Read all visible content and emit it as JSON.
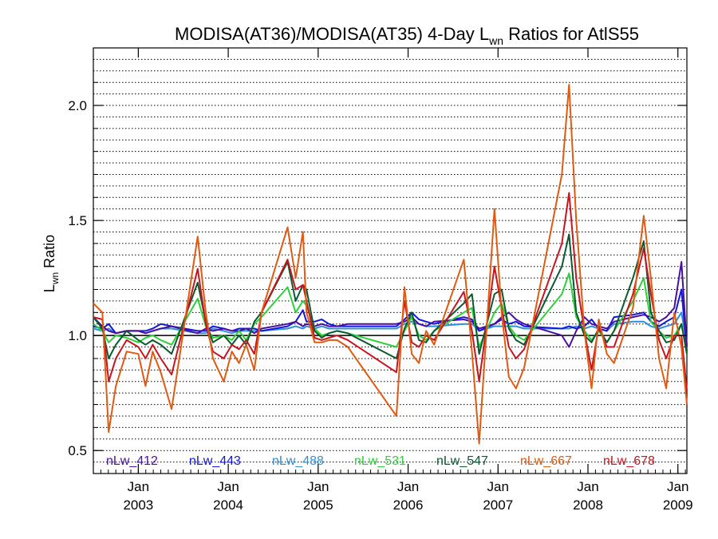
{
  "chart_data": {
    "type": "line",
    "title": {
      "main": "MODISA(AT36)/MODISA(AT35) 4-Day L",
      "sub": "wn",
      "tail": " Ratios for AtlS55"
    },
    "ylabel": {
      "main": "L",
      "sub": "wn",
      "tail": " Ratio"
    },
    "xlabel": "",
    "xlim": [
      2002.5,
      2009.1
    ],
    "ylim": [
      0.4,
      2.25
    ],
    "yticks": [
      {
        "value": 0.5,
        "label": "0.5"
      },
      {
        "value": 1.0,
        "label": "1.0"
      },
      {
        "value": 1.5,
        "label": "1.5"
      },
      {
        "value": 2.0,
        "label": "2.0"
      }
    ],
    "xticks": [
      {
        "value": 2003.0,
        "month": "Jan",
        "year": "2003"
      },
      {
        "value": 2004.0,
        "month": "Jan",
        "year": "2004"
      },
      {
        "value": 2005.0,
        "month": "Jan",
        "year": "2005"
      },
      {
        "value": 2006.0,
        "month": "Jan",
        "year": "2006"
      },
      {
        "value": 2007.0,
        "month": "Jan",
        "year": "2007"
      },
      {
        "value": 2008.0,
        "month": "Jan",
        "year": "2008"
      },
      {
        "value": 2009.0,
        "month": "Jan",
        "year": "2009"
      }
    ],
    "grid": "horizontal-dotted",
    "reference_line": 1.0,
    "legend_position": "bottom-inside",
    "x": [
      2002.5,
      2002.6,
      2002.67,
      2002.75,
      2002.87,
      2003.0,
      2003.08,
      2003.16,
      2003.25,
      2003.37,
      2003.66,
      2003.75,
      2003.83,
      2003.95,
      2004.04,
      2004.12,
      2004.2,
      2004.29,
      2004.37,
      2004.66,
      2004.75,
      2004.83,
      2004.87,
      2004.96,
      2005.04,
      2005.12,
      2005.21,
      2005.33,
      2005.87,
      2005.96,
      2006.04,
      2006.12,
      2006.2,
      2006.29,
      2006.62,
      2006.71,
      2006.79,
      2006.96,
      2007.04,
      2007.12,
      2007.2,
      2007.29,
      2007.71,
      2007.79,
      2007.87,
      2007.96,
      2008.04,
      2008.12,
      2008.21,
      2008.29,
      2008.5,
      2008.62,
      2008.7,
      2008.79,
      2008.87,
      2008.96,
      2009.04,
      2009.1
    ],
    "series": [
      {
        "name": "nLw_412",
        "color": "#4a0fa0",
        "values": [
          1.08,
          1.04,
          1.02,
          1.01,
          1.02,
          1.02,
          1.01,
          1.02,
          1.03,
          1.04,
          1.01,
          1.03,
          1.02,
          1.03,
          1.02,
          1.02,
          1.03,
          1.01,
          1.03,
          1.05,
          1.06,
          1.04,
          1.05,
          1.04,
          1.05,
          1.04,
          1.04,
          1.05,
          1.05,
          1.06,
          1.08,
          1.05,
          1.04,
          1.06,
          1.07,
          1.06,
          1.03,
          1.05,
          1.08,
          1.1,
          1.07,
          1.05,
          1.0,
          0.95,
          1.02,
          1.08,
          1.05,
          1.04,
          1.03,
          1.06,
          1.08,
          1.09,
          1.08,
          1.06,
          1.08,
          1.12,
          1.32,
          0.95
        ]
      },
      {
        "name": "nLw_443",
        "color": "#1219d8",
        "values": [
          1.04,
          1.03,
          1.05,
          1.01,
          1.02,
          1.02,
          1.02,
          1.03,
          1.05,
          1.04,
          1.02,
          1.02,
          1.04,
          1.03,
          1.02,
          1.03,
          1.03,
          1.03,
          1.02,
          1.04,
          1.06,
          1.11,
          1.06,
          1.06,
          1.07,
          1.05,
          1.04,
          1.04,
          1.04,
          1.07,
          1.1,
          1.07,
          1.06,
          1.05,
          1.08,
          1.07,
          1.02,
          1.05,
          1.07,
          1.05,
          1.06,
          1.04,
          1.03,
          1.04,
          1.03,
          1.04,
          1.07,
          1.03,
          1.02,
          1.08,
          1.09,
          1.1,
          1.06,
          1.04,
          1.06,
          1.08,
          1.2,
          0.93
        ]
      },
      {
        "name": "nLw_488",
        "color": "#2f8fd8",
        "values": [
          1.03,
          1.02,
          1.03,
          1.01,
          1.02,
          1.02,
          1.01,
          1.02,
          1.03,
          1.03,
          1.01,
          1.01,
          1.03,
          1.02,
          1.01,
          1.02,
          1.02,
          1.02,
          1.02,
          1.03,
          1.04,
          1.03,
          1.04,
          1.03,
          1.04,
          1.03,
          1.03,
          1.03,
          1.03,
          1.05,
          1.06,
          1.05,
          1.04,
          1.04,
          1.05,
          1.05,
          1.02,
          1.04,
          1.04,
          1.04,
          1.04,
          1.03,
          1.03,
          1.03,
          1.04,
          1.03,
          1.04,
          1.03,
          1.02,
          1.05,
          1.06,
          1.06,
          1.04,
          1.03,
          1.04,
          1.05,
          1.1,
          0.96
        ]
      },
      {
        "name": "nLw_531",
        "color": "#2ed03a",
        "values": [
          1.05,
          1.02,
          0.97,
          1.0,
          0.99,
          0.97,
          0.99,
          1.0,
          0.98,
          0.96,
          1.16,
          1.04,
          0.99,
          1.0,
          0.98,
          1.02,
          0.98,
          1.05,
          1.08,
          1.21,
          1.1,
          1.15,
          1.13,
          1.03,
          1.0,
          1.01,
          1.02,
          1.01,
          0.95,
          1.02,
          1.08,
          1.0,
          0.98,
          1.02,
          1.1,
          1.12,
          0.95,
          1.1,
          1.14,
          1.04,
          1.0,
          0.98,
          1.18,
          1.27,
          1.08,
          1.02,
          0.98,
          1.02,
          0.97,
          1.02,
          1.15,
          1.25,
          1.06,
          1.02,
          0.99,
          1.0,
          1.05,
          0.92
        ]
      },
      {
        "name": "nLw_547",
        "color": "#0a5a30",
        "values": [
          1.08,
          1.03,
          0.9,
          0.96,
          1.02,
          0.98,
          0.96,
          0.98,
          0.96,
          0.92,
          1.23,
          1.06,
          0.97,
          1.0,
          0.96,
          1.0,
          0.96,
          1.06,
          1.1,
          1.32,
          1.15,
          1.22,
          1.2,
          1.02,
          0.99,
          1.01,
          1.02,
          1.01,
          0.9,
          1.03,
          1.1,
          0.98,
          0.97,
          1.02,
          1.14,
          1.18,
          0.92,
          1.18,
          1.2,
          1.03,
          0.98,
          0.96,
          1.3,
          1.44,
          1.1,
          1.0,
          0.97,
          1.03,
          0.97,
          1.02,
          1.25,
          1.41,
          1.1,
          1.02,
          0.97,
          0.98,
          1.05,
          0.92
        ]
      },
      {
        "name": "nLw_667",
        "color": "#e05a10",
        "values": [
          1.14,
          1.1,
          0.58,
          0.78,
          0.93,
          0.92,
          0.78,
          0.93,
          0.84,
          0.68,
          1.43,
          1.1,
          0.9,
          0.8,
          0.93,
          0.88,
          0.96,
          0.85,
          1.1,
          1.47,
          1.25,
          1.45,
          1.1,
          0.97,
          0.97,
          0.98,
          0.98,
          0.95,
          0.65,
          1.21,
          0.92,
          0.88,
          1.02,
          0.96,
          1.33,
          0.93,
          0.53,
          1.55,
          1.1,
          0.82,
          0.77,
          0.86,
          1.7,
          2.09,
          1.5,
          1.02,
          0.77,
          1.07,
          0.92,
          0.88,
          1.12,
          1.52,
          1.25,
          0.9,
          0.77,
          1.1,
          0.95,
          0.7
        ]
      },
      {
        "name": "nLw_678",
        "color": "#c8141e",
        "values": [
          1.08,
          1.07,
          0.8,
          0.9,
          0.98,
          0.95,
          0.9,
          0.96,
          0.9,
          0.83,
          1.29,
          1.05,
          0.93,
          0.9,
          0.96,
          0.94,
          0.98,
          0.92,
          1.1,
          1.33,
          1.2,
          1.22,
          1.15,
          0.99,
          0.98,
          0.99,
          1.0,
          0.98,
          0.84,
          1.15,
          0.97,
          0.95,
          1.0,
          0.98,
          1.19,
          1.02,
          0.8,
          1.3,
          1.12,
          0.95,
          0.9,
          0.94,
          1.4,
          1.62,
          1.25,
          1.02,
          0.85,
          1.04,
          0.95,
          0.95,
          1.18,
          1.38,
          1.18,
          0.98,
          0.9,
          1.0,
          1.0,
          0.76
        ]
      }
    ]
  }
}
